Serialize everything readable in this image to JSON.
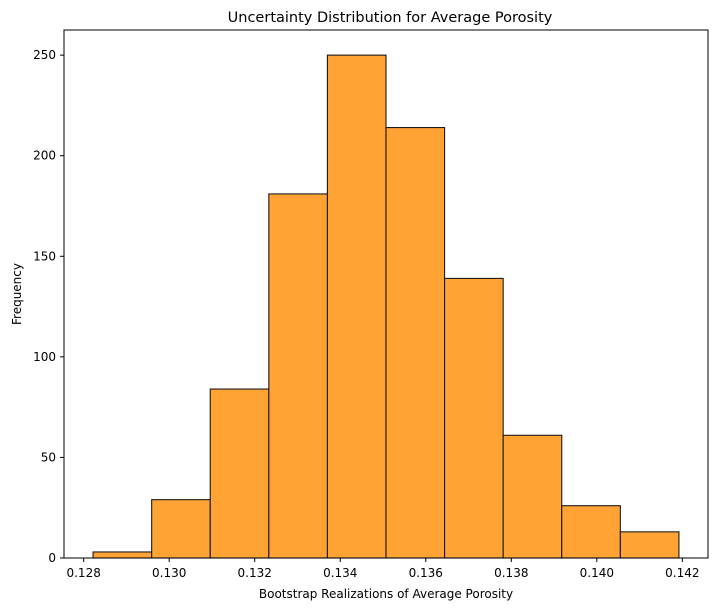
{
  "chart_data": {
    "type": "bar",
    "title": "Uncertainty Distribution for Average Porosity",
    "xlabel": "Bootstrap Realizations of Average Porosity",
    "ylabel": "Frequency",
    "bin_edges": [
      0.12822,
      0.12959,
      0.13096,
      0.13233,
      0.1337,
      0.13507,
      0.13644,
      0.13781,
      0.13918,
      0.14055,
      0.14192
    ],
    "values": [
      3,
      29,
      84,
      181,
      250,
      214,
      139,
      61,
      26,
      13
    ],
    "xlim": [
      0.12754,
      0.1426
    ],
    "ylim": [
      0,
      262.5
    ],
    "xticks": [
      0.128,
      0.13,
      0.132,
      0.134,
      0.136,
      0.138,
      0.14,
      0.142
    ],
    "xtick_labels": [
      "0.128",
      "0.130",
      "0.132",
      "0.134",
      "0.136",
      "0.138",
      "0.140",
      "0.142"
    ],
    "yticks": [
      0,
      50,
      100,
      150,
      200,
      250
    ],
    "ytick_labels": [
      "0",
      "50",
      "100",
      "150",
      "200",
      "250"
    ],
    "grid": false,
    "legend": "none",
    "colors": {
      "bar_fill": "#ffa334",
      "bar_edge": "#1a1a1a",
      "axis": "#000000"
    }
  }
}
